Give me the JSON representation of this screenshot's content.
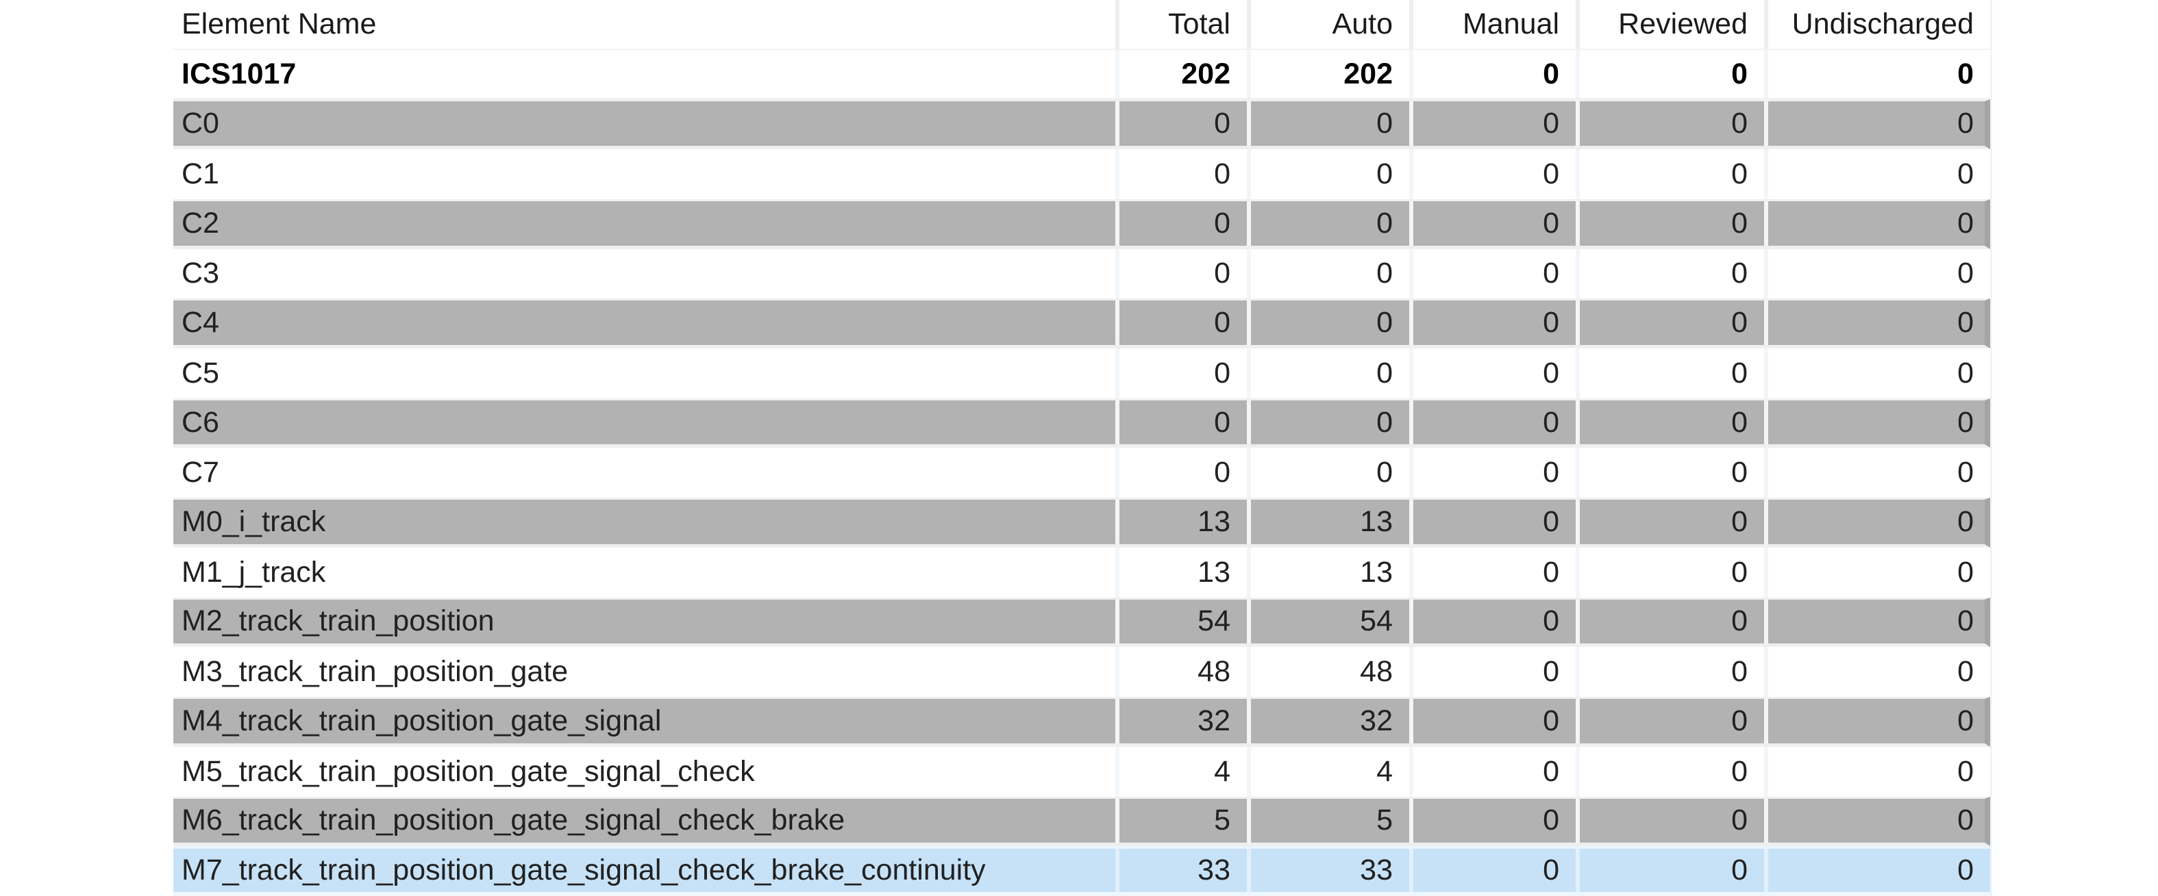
{
  "table": {
    "header": {
      "labels": [
        "Element Name",
        "Total",
        "Auto",
        "Manual",
        "Reviewed",
        "Undischarged"
      ]
    },
    "rows": [
      {
        "name": "ICS1017",
        "values": [
          "202",
          "202",
          "0",
          "0",
          "0"
        ],
        "variant": "bold"
      },
      {
        "name": "C0",
        "values": [
          "0",
          "0",
          "0",
          "0",
          "0"
        ],
        "variant": "gray"
      },
      {
        "name": "C1",
        "values": [
          "0",
          "0",
          "0",
          "0",
          "0"
        ],
        "variant": "plain"
      },
      {
        "name": "C2",
        "values": [
          "0",
          "0",
          "0",
          "0",
          "0"
        ],
        "variant": "gray"
      },
      {
        "name": "C3",
        "values": [
          "0",
          "0",
          "0",
          "0",
          "0"
        ],
        "variant": "plain"
      },
      {
        "name": "C4",
        "values": [
          "0",
          "0",
          "0",
          "0",
          "0"
        ],
        "variant": "gray"
      },
      {
        "name": "C5",
        "values": [
          "0",
          "0",
          "0",
          "0",
          "0"
        ],
        "variant": "plain"
      },
      {
        "name": "C6",
        "values": [
          "0",
          "0",
          "0",
          "0",
          "0"
        ],
        "variant": "gray"
      },
      {
        "name": "C7",
        "values": [
          "0",
          "0",
          "0",
          "0",
          "0"
        ],
        "variant": "plain"
      },
      {
        "name": "M0_i_track",
        "values": [
          "13",
          "13",
          "0",
          "0",
          "0"
        ],
        "variant": "gray"
      },
      {
        "name": "M1_j_track",
        "values": [
          "13",
          "13",
          "0",
          "0",
          "0"
        ],
        "variant": "plain"
      },
      {
        "name": "M2_track_train_position",
        "values": [
          "54",
          "54",
          "0",
          "0",
          "0"
        ],
        "variant": "gray"
      },
      {
        "name": "M3_track_train_position_gate",
        "values": [
          "48",
          "48",
          "0",
          "0",
          "0"
        ],
        "variant": "plain"
      },
      {
        "name": "M4_track_train_position_gate_signal",
        "values": [
          "32",
          "32",
          "0",
          "0",
          "0"
        ],
        "variant": "gray"
      },
      {
        "name": "M5_track_train_position_gate_signal_check",
        "values": [
          "4",
          "4",
          "0",
          "0",
          "0"
        ],
        "variant": "plain"
      },
      {
        "name": "M6_track_train_position_gate_signal_check_brake",
        "values": [
          "5",
          "5",
          "0",
          "0",
          "0"
        ],
        "variant": "gray"
      },
      {
        "name": "M7_track_train_position_gate_signal_check_brake_continuity",
        "values": [
          "33",
          "33",
          "0",
          "0",
          "0"
        ],
        "variant": "selected"
      }
    ],
    "selected_row": "M7_track_train_position_gate_signal_check_brake_continuity"
  },
  "colors": {
    "row_stripe_gray": "#b2b2b2",
    "row_selected_blue": "#c7e2f7",
    "stripe_right_edge": "#a4a4a4",
    "text": "#212121"
  }
}
